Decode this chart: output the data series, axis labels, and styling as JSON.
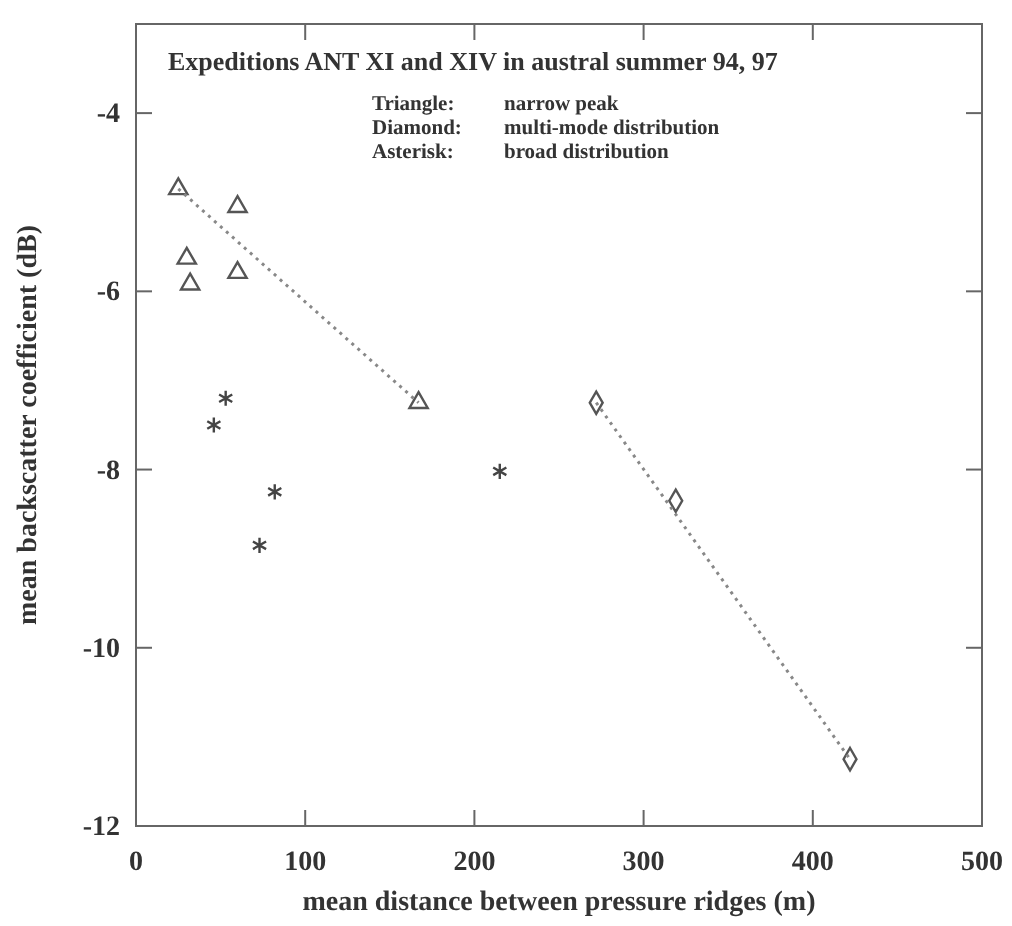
{
  "chart_data": {
    "type": "scatter",
    "title": "Expeditions ANT XI and XIV in austral summer 94, 97",
    "xlabel": "mean distance between pressure ridges (m)",
    "ylabel": "mean backscatter coefficient (dB)",
    "annotations": [
      "Triangle:    narrow peak",
      "Diamond:    multi-mode distribution",
      "Asterisk:    broad distribution"
    ],
    "xlim": [
      0,
      500
    ],
    "ylim": [
      -12,
      -3
    ],
    "xticks": [
      0,
      100,
      200,
      300,
      400,
      500
    ],
    "yticks": [
      -12,
      -10,
      -8,
      -6,
      -4
    ],
    "grid": false,
    "series": [
      {
        "color": "#555555",
        "marker": "triangle",
        "x": [
          25,
          60,
          30,
          32,
          60,
          167
        ],
        "values": [
          -4.85,
          -5.05,
          -5.63,
          -5.92,
          -5.79,
          -7.25
        ]
      },
      {
        "color": "#555555",
        "marker": "diamond",
        "x": [
          272,
          319,
          422
        ],
        "values": [
          -7.25,
          -8.35,
          -11.25
        ]
      },
      {
        "color": "#444444",
        "marker": "cross",
        "x": [
          53,
          46,
          82,
          73,
          215
        ],
        "values": [
          -7.2,
          -7.5,
          -8.25,
          -8.85,
          -8.02
        ]
      },
      {
        "type": "line",
        "color": "#888888",
        "line_style": "dotted",
        "marker": "none",
        "x": [
          25,
          167
        ],
        "values": [
          -4.85,
          -7.25
        ]
      },
      {
        "type": "line",
        "color": "#888888",
        "line_style": "dotted",
        "marker": "none",
        "x": [
          272,
          422
        ],
        "values": [
          -7.25,
          -11.25
        ]
      }
    ]
  }
}
